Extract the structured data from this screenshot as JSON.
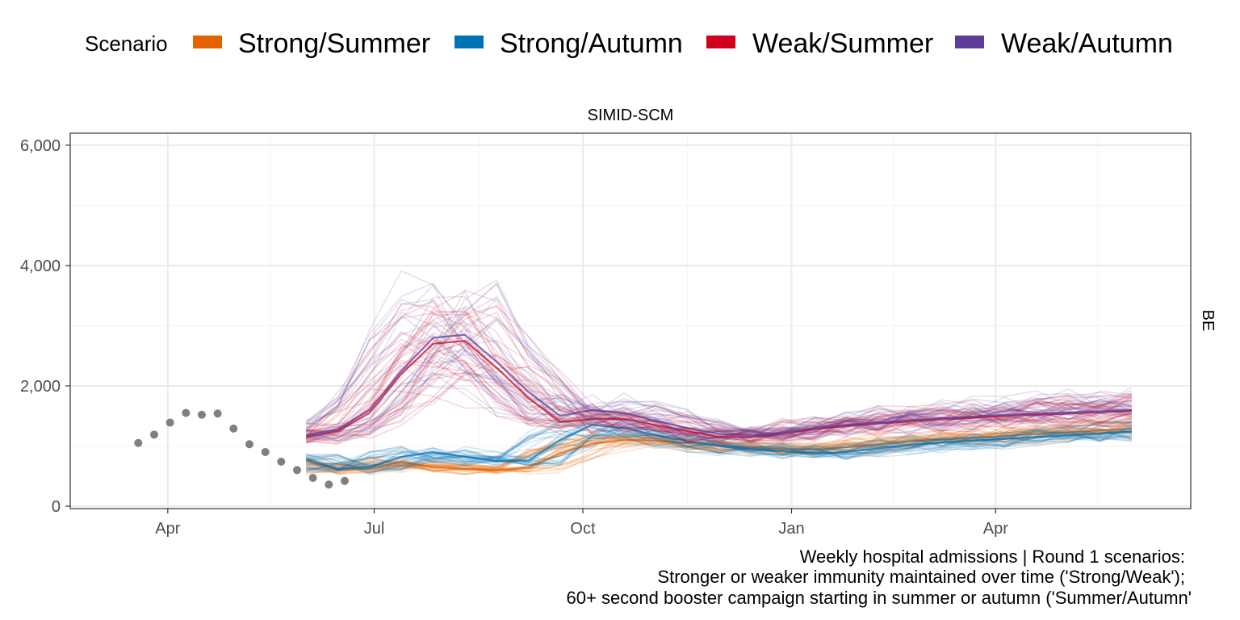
{
  "legend": {
    "title": "Scenario",
    "items": [
      {
        "label": "Strong/Summer",
        "color": "#E66100"
      },
      {
        "label": "Strong/Autumn",
        "color": "#0072B2"
      },
      {
        "label": "Weak/Summer",
        "color": "#D0021B"
      },
      {
        "label": "Weak/Autumn",
        "color": "#5E3C99"
      }
    ]
  },
  "facet": {
    "title": "SIMID-SCM",
    "strip": "BE"
  },
  "caption": {
    "line1": "Weekly hospital admissions | Round 1 scenarios:",
    "line2": "Stronger or weaker immunity maintained over time ('Strong/Weak');",
    "line3": "60+ second booster campaign starting in summer or autumn ('Summer/Autumn'"
  },
  "chart_data": {
    "type": "line",
    "title": "SIMID-SCM",
    "facet_label": "BE",
    "xlabel": "",
    "ylabel": "",
    "x_ticks": [
      {
        "label": "Apr",
        "date": "2022-04-01"
      },
      {
        "label": "Jul",
        "date": "2022-07-01"
      },
      {
        "label": "Oct",
        "date": "2022-10-01"
      },
      {
        "label": "Jan",
        "date": "2023-01-01"
      },
      {
        "label": "Apr",
        "date": "2023-04-01"
      }
    ],
    "x_range": [
      "2022-02-17",
      "2023-06-26"
    ],
    "y_ticks": [
      0,
      2000,
      4000,
      6000
    ],
    "y_tick_labels": [
      "0",
      "2,000",
      "4,000",
      "6,000"
    ],
    "ylim": [
      -40,
      6200
    ],
    "grid": true,
    "legend_position": "top",
    "observed": {
      "color": "#808080",
      "dates": [
        "2022-03-19",
        "2022-03-26",
        "2022-04-02",
        "2022-04-09",
        "2022-04-16",
        "2022-04-23",
        "2022-04-30",
        "2022-05-07",
        "2022-05-14",
        "2022-05-21",
        "2022-05-28",
        "2022-06-04",
        "2022-06-11",
        "2022-06-18"
      ],
      "values": [
        1050,
        1190,
        1390,
        1550,
        1520,
        1540,
        1290,
        1030,
        900,
        740,
        600,
        470,
        360,
        420
      ]
    },
    "projection_dates": [
      "2022-06-01",
      "2022-06-15",
      "2022-06-29",
      "2022-07-13",
      "2022-07-27",
      "2022-08-10",
      "2022-08-24",
      "2022-09-07",
      "2022-09-21",
      "2022-10-05",
      "2022-10-19",
      "2022-11-02",
      "2022-11-16",
      "2022-11-30",
      "2022-12-14",
      "2022-12-28",
      "2023-01-11",
      "2023-01-25",
      "2023-02-08",
      "2023-02-22",
      "2023-03-08",
      "2023-03-22",
      "2023-04-05",
      "2023-04-19",
      "2023-05-03",
      "2023-05-17",
      "2023-05-31"
    ],
    "series": [
      {
        "name": "Strong/Summer",
        "color": "#E66100",
        "values": [
          760,
          600,
          620,
          740,
          650,
          620,
          600,
          640,
          880,
          1040,
          1100,
          1090,
          1050,
          1010,
          980,
          950,
          940,
          980,
          1030,
          1080,
          1110,
          1140,
          1170,
          1200,
          1230,
          1260,
          1290
        ]
      },
      {
        "name": "Strong/Autumn",
        "color": "#0072B2",
        "values": [
          780,
          620,
          650,
          820,
          900,
          820,
          750,
          760,
          1100,
          1350,
          1300,
          1180,
          1080,
          1000,
          950,
          910,
          880,
          900,
          960,
          1020,
          1060,
          1090,
          1120,
          1150,
          1180,
          1210,
          1240
        ]
      },
      {
        "name": "Weak/Summer",
        "color": "#D0021B",
        "values": [
          1150,
          1250,
          1550,
          2200,
          2700,
          2750,
          2300,
          1800,
          1400,
          1450,
          1450,
          1350,
          1250,
          1150,
          1150,
          1200,
          1280,
          1330,
          1370,
          1410,
          1440,
          1470,
          1500,
          1520,
          1540,
          1560,
          1580
        ]
      },
      {
        "name": "Weak/Autumn",
        "color": "#5E3C99",
        "values": [
          1180,
          1280,
          1600,
          2250,
          2800,
          2850,
          2400,
          1900,
          1500,
          1600,
          1550,
          1420,
          1300,
          1200,
          1180,
          1220,
          1300,
          1350,
          1390,
          1430,
          1460,
          1490,
          1520,
          1540,
          1560,
          1580,
          1600
        ]
      }
    ]
  }
}
